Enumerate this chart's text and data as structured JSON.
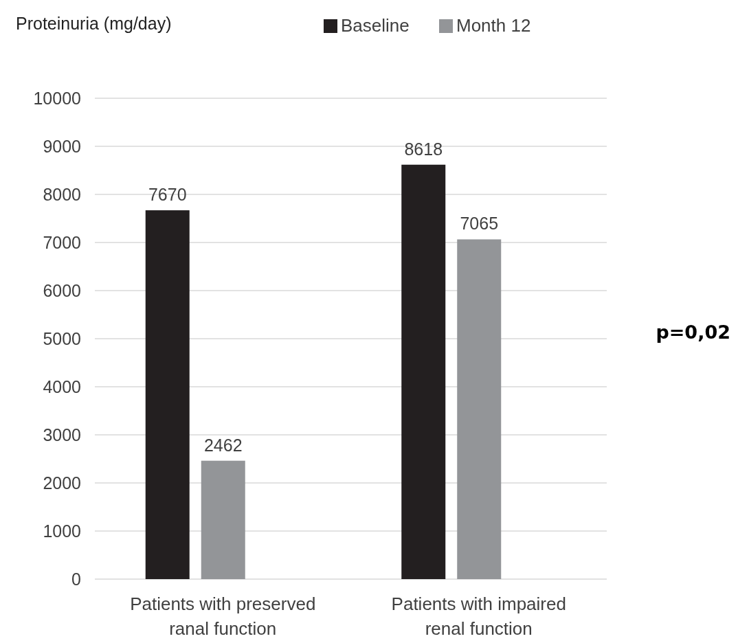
{
  "chart_data": {
    "type": "bar",
    "ylabel": "Proteinuria (mg/day)",
    "categories": [
      "Patients with preserved ranal function",
      "Patients with impaired renal function"
    ],
    "series": [
      {
        "name": "Baseline",
        "color": "#231f20",
        "values": [
          7670,
          8618
        ]
      },
      {
        "name": "Month 12",
        "color": "#939598",
        "values": [
          2462,
          7065
        ]
      }
    ],
    "ylim": [
      0,
      10000
    ],
    "yticks": [
      0,
      1000,
      2000,
      3000,
      4000,
      5000,
      6000,
      7000,
      8000,
      9000,
      10000
    ],
    "grid": "y",
    "legend": "top",
    "data_labels": true,
    "annotations": [
      "p=0,02"
    ]
  }
}
